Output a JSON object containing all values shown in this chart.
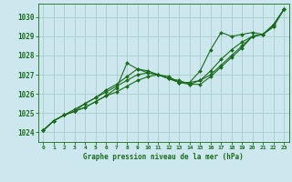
{
  "xlabel": "Graphe pression niveau de la mer (hPa)",
  "bg_color": "#cce8ee",
  "grid_color": "#aacccc",
  "line_color": "#1a6b1a",
  "marker_color": "#1a6b1a",
  "xlim": [
    -0.5,
    23.5
  ],
  "ylim": [
    1023.5,
    1030.7
  ],
  "yticks": [
    1024,
    1025,
    1026,
    1027,
    1028,
    1029,
    1030
  ],
  "xticks": [
    0,
    1,
    2,
    3,
    4,
    5,
    6,
    7,
    8,
    9,
    10,
    11,
    12,
    13,
    14,
    15,
    16,
    17,
    18,
    19,
    20,
    21,
    22,
    23
  ],
  "series": [
    [
      1024.1,
      1024.6,
      1024.9,
      1025.1,
      1025.3,
      1025.6,
      1025.9,
      1026.3,
      1027.6,
      1027.3,
      1027.1,
      1027.0,
      1026.8,
      1026.6,
      1026.6,
      1027.2,
      1028.3,
      1029.2,
      1029.0,
      1029.1,
      1029.2,
      1029.1,
      1029.6,
      1030.4
    ],
    [
      1024.1,
      1024.6,
      1024.9,
      1025.1,
      1025.3,
      1025.6,
      1025.9,
      1026.1,
      1026.4,
      1026.7,
      1026.9,
      1027.0,
      1026.8,
      1026.7,
      1026.5,
      1026.7,
      1027.2,
      1027.8,
      1028.3,
      1028.7,
      1029.0,
      1029.1,
      1029.5,
      1030.4
    ],
    [
      1024.1,
      1024.6,
      1024.9,
      1025.1,
      1025.5,
      1025.8,
      1026.1,
      1026.4,
      1026.7,
      1027.0,
      1027.1,
      1027.0,
      1026.8,
      1026.6,
      1026.5,
      1026.5,
      1026.9,
      1027.4,
      1027.9,
      1028.4,
      1029.0,
      1029.1,
      1029.5,
      1030.4
    ],
    [
      1024.1,
      1024.6,
      1024.9,
      1025.2,
      1025.5,
      1025.8,
      1026.2,
      1026.5,
      1026.9,
      1027.3,
      1027.2,
      1027.0,
      1026.9,
      1026.6,
      1026.6,
      1026.7,
      1027.0,
      1027.5,
      1028.0,
      1028.5,
      1029.0,
      1029.1,
      1029.6,
      1030.4
    ]
  ]
}
